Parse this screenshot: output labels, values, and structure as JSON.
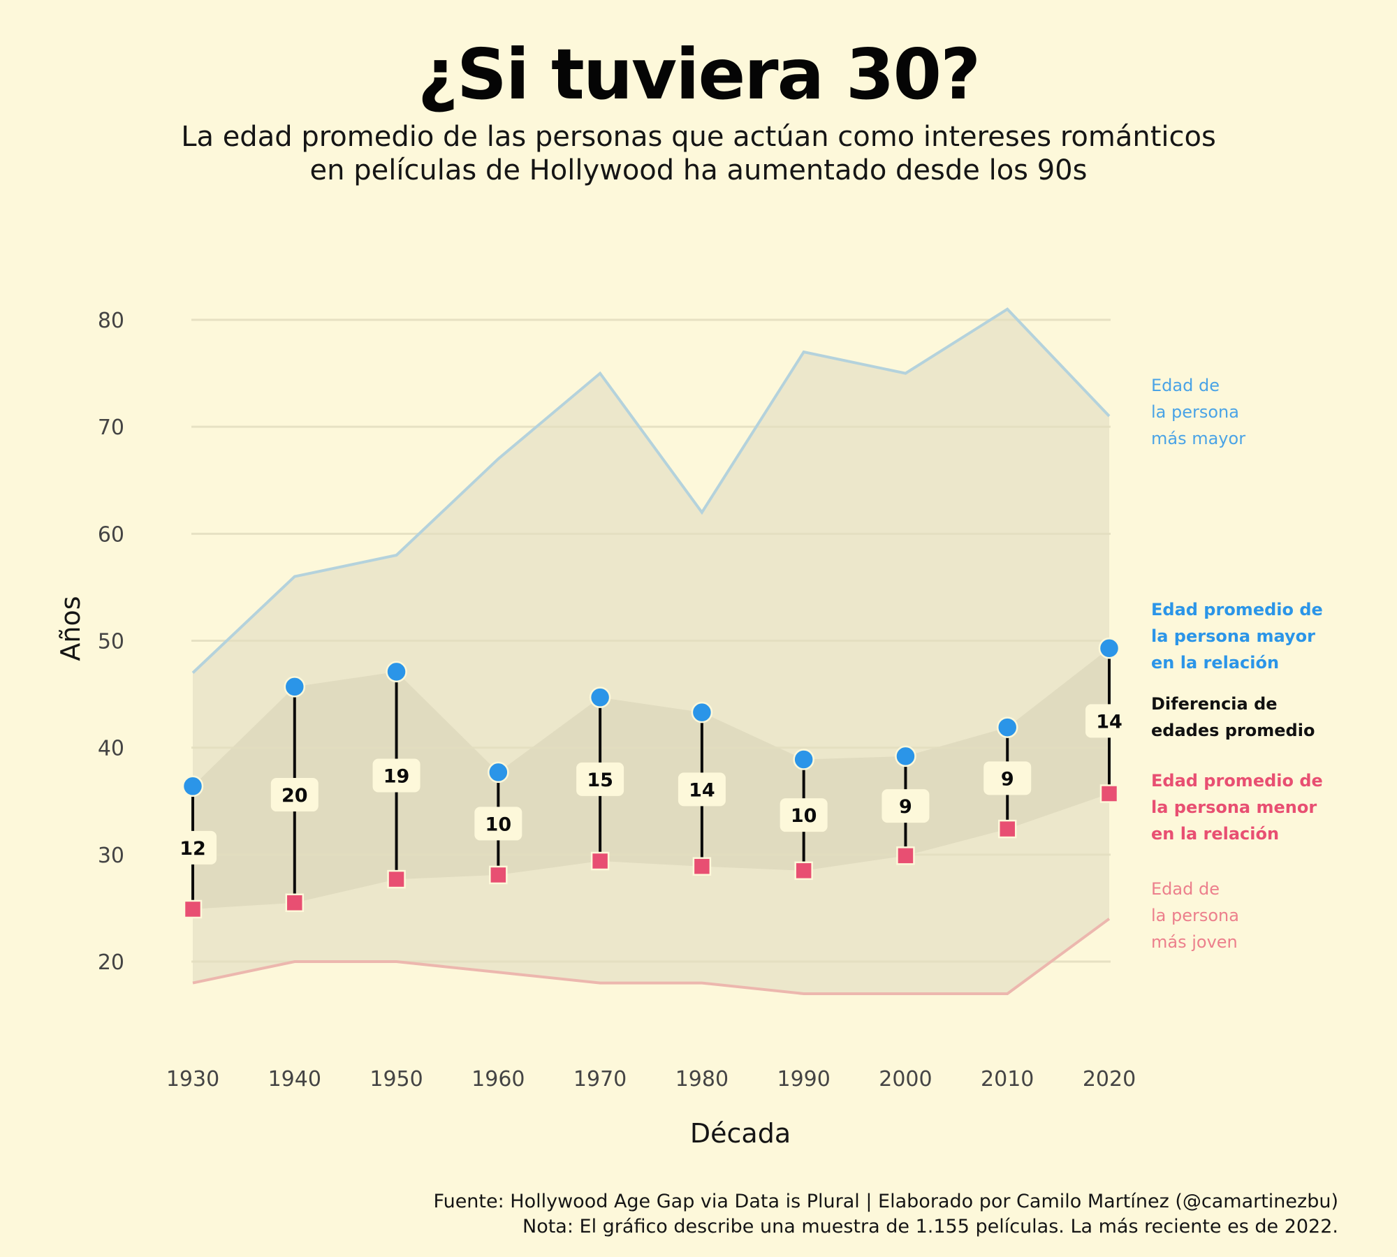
{
  "title": "¿Si tuviera 30?",
  "subtitle": [
    "La edad promedio de las personas que actúan como intereses románticos",
    "en películas de Hollywood ha aumentado desde los 90s"
  ],
  "caption": [
    "Fuente: Hollywood Age Gap via Data is Plural | Elaborado por Camilo Martínez (@camartinezbu)",
    "Nota: El gráfico describe una muestra de 1.155 películas. La más reciente es de 2022."
  ],
  "colors": {
    "background": "#fdf8da",
    "older": "#2b95e8",
    "younger": "#e84f72",
    "max_line": "#b4d2dc",
    "min_line": "#ecb7ae",
    "outer_band": "#ece7cb",
    "inner_band": "#e0dbbf",
    "grid": "#e3dec0"
  },
  "chart_data": {
    "type": "line",
    "xlabel": "Década",
    "ylabel": "Años",
    "x": [
      1930,
      1940,
      1950,
      1960,
      1970,
      1980,
      1990,
      2000,
      2010,
      2020
    ],
    "yticks": [
      20,
      30,
      40,
      50,
      60,
      70,
      80
    ],
    "ylim": [
      11.5,
      84
    ],
    "grid": true,
    "series": [
      {
        "name": "Edad de la persona más mayor",
        "key": "max",
        "values": [
          47,
          56,
          58,
          67,
          75,
          62,
          77,
          75,
          81,
          71
        ]
      },
      {
        "name": "Edad promedio de la persona mayor en la relación",
        "key": "older_avg",
        "values": [
          36.4,
          45.7,
          47.1,
          37.7,
          44.7,
          43.3,
          38.9,
          39.2,
          41.9,
          49.3
        ]
      },
      {
        "name": "Edad promedio de la persona menor en la relación",
        "key": "younger_avg",
        "values": [
          24.9,
          25.5,
          27.7,
          28.1,
          29.4,
          28.9,
          28.5,
          29.9,
          32.4,
          35.7
        ]
      },
      {
        "name": "Edad de la persona más joven",
        "key": "min",
        "values": [
          18,
          20,
          20,
          19,
          18,
          18,
          17,
          17,
          17,
          24
        ]
      }
    ],
    "gap_labels": [
      "12",
      "20",
      "19",
      "10",
      "15",
      "14",
      "10",
      "9",
      "9",
      "14"
    ],
    "legend": [
      {
        "lines": [
          "Edad de",
          "la persona",
          "más mayor"
        ],
        "color": "#4aa3e6",
        "bold": false
      },
      {
        "lines": [
          "Edad promedio de",
          "la persona mayor",
          "en la relación"
        ],
        "color": "#2b95e8",
        "bold": true
      },
      {
        "lines": [
          "Diferencia de",
          "edades promedio"
        ],
        "color": "#111111",
        "bold": true
      },
      {
        "lines": [
          "Edad promedio de",
          "la persona menor",
          "en la relación"
        ],
        "color": "#e84f72",
        "bold": true
      },
      {
        "lines": [
          "Edad de",
          "la persona",
          "más joven"
        ],
        "color": "#ec7f8c",
        "bold": false
      }
    ],
    "legend_placement": "right"
  }
}
